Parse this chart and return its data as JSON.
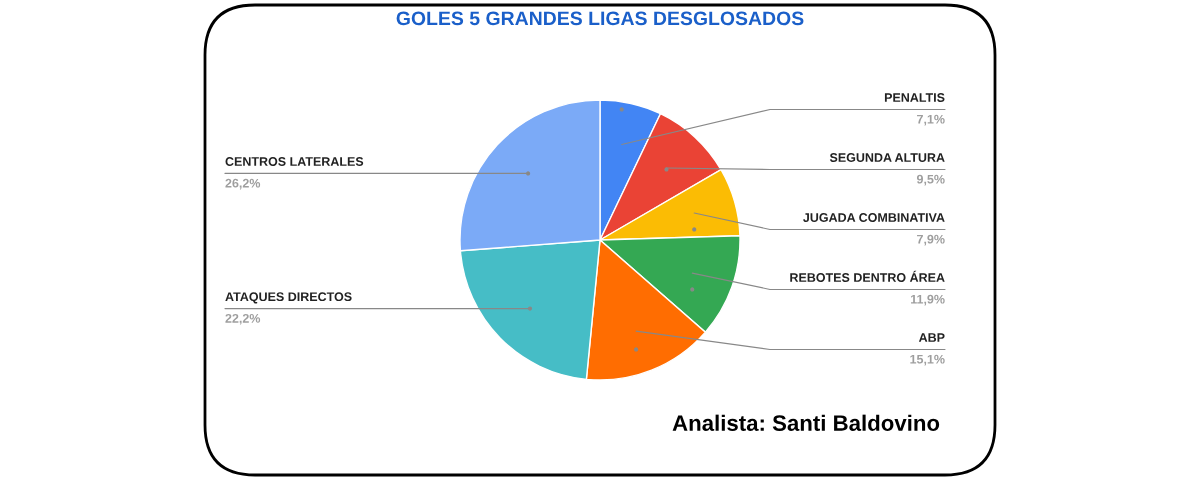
{
  "chart_data": {
    "type": "pie",
    "title": "GOLES 5 GRANDES LIGAS DESGLOSADOS",
    "categories": [
      "PENALTIS",
      "SEGUNDA ALTURA",
      "JUGADA COMBINATIVA",
      "REBOTES DENTRO ÁREA",
      "ABP",
      "ATAQUES DIRECTOS",
      "CENTROS LATERALES"
    ],
    "values": [
      7.1,
      9.5,
      7.9,
      11.9,
      15.1,
      22.2,
      26.2
    ],
    "value_labels": [
      "7,1%",
      "9,5%",
      "7,9%",
      "11,9%",
      "15,1%",
      "22,2%",
      "26,2%"
    ],
    "colors": [
      "#4285f4",
      "#ea4335",
      "#fbbc04",
      "#34a853",
      "#ff6d01",
      "#46bdc6",
      "#7baaf7"
    ],
    "annotations": [
      "Analista: Santi Baldovino"
    ]
  }
}
